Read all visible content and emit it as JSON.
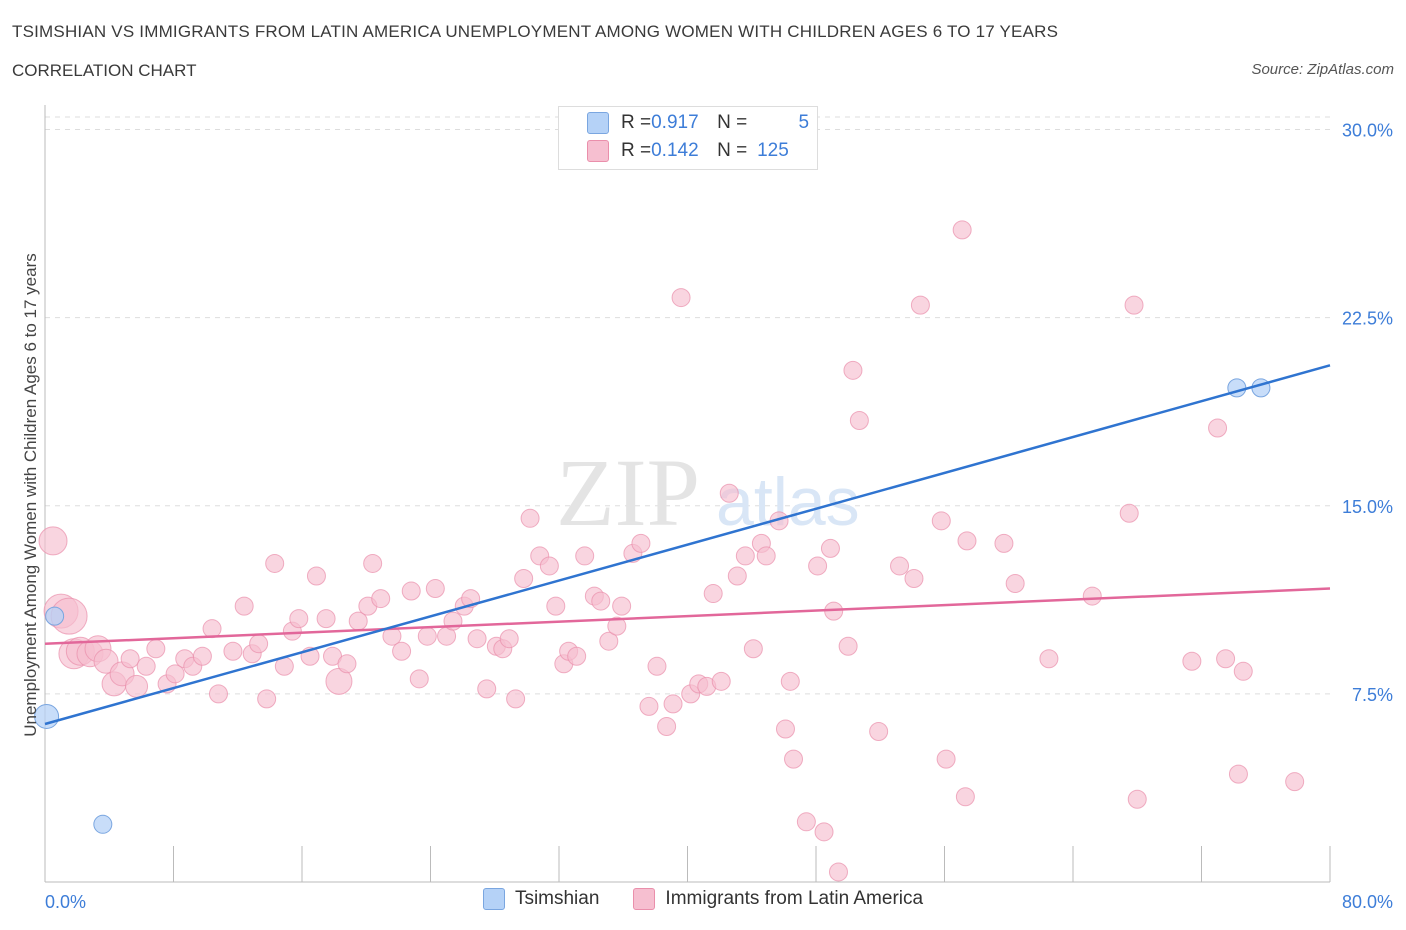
{
  "title": "TSIMSHIAN VS IMMIGRANTS FROM LATIN AMERICA UNEMPLOYMENT AMONG WOMEN WITH CHILDREN AGES 6 TO 17 YEARS",
  "subtitle": "CORRELATION CHART",
  "source": "Source: ZipAtlas.com",
  "watermark": {
    "zip": "ZIP",
    "atlas": "atlas"
  },
  "colors": {
    "tsimshian_fill": "#b5d2f7",
    "tsimshian_stroke": "#7aa6e0",
    "tsimshian_line": "#2f74d0",
    "latin_fill": "#f6bfd0",
    "latin_stroke": "#ea8fab",
    "latin_line": "#e2679a",
    "axis_label_blue": "#3d7dd8",
    "grid": "#dddddd"
  },
  "stats_legend": [
    {
      "r_label": "R = ",
      "r": "0.917",
      "n_label": "N = ",
      "n": "5"
    },
    {
      "r_label": "R = ",
      "r": "0.142",
      "n_label": "N = ",
      "n": "125"
    }
  ],
  "legend": [
    "Tsimshian",
    "Immigrants from Latin America"
  ],
  "chart_data": {
    "type": "scatter",
    "title": "TSIMSHIAN VS IMMIGRANTS FROM LATIN AMERICA UNEMPLOYMENT AMONG WOMEN WITH CHILDREN AGES 6 TO 17 YEARS",
    "ylabel": "Unemployment Among Women with Children Ages 6 to 17 years",
    "xlabel": "",
    "xlim": [
      0,
      80
    ],
    "ylim": [
      0,
      30.5
    ],
    "x_tick_labels": [
      "0.0%",
      "80.0%"
    ],
    "y_tick_labels": [
      "7.5%",
      "15.0%",
      "22.5%",
      "30.0%"
    ],
    "y_ticks": [
      7.5,
      15.0,
      22.5,
      30.0
    ],
    "x_ticks": [
      0,
      8,
      16,
      24,
      32,
      40,
      48,
      56,
      64,
      72,
      80
    ],
    "grid": true,
    "legend_position": "bottom",
    "series": [
      {
        "name": "Tsimshian",
        "r": 0.917,
        "n": 5,
        "points": [
          [
            0.1,
            6.6
          ],
          [
            0.6,
            10.6
          ],
          [
            3.6,
            2.3
          ],
          [
            74.2,
            19.7
          ],
          [
            75.7,
            19.7
          ]
        ],
        "trend": [
          [
            0,
            6.3
          ],
          [
            80,
            20.6
          ]
        ]
      },
      {
        "name": "Immigrants from Latin America",
        "r": 0.142,
        "n": 125,
        "points": [
          [
            0.5,
            13.6
          ],
          [
            1.0,
            10.8
          ],
          [
            1.5,
            10.6
          ],
          [
            1.8,
            9.1
          ],
          [
            2.2,
            9.2
          ],
          [
            2.8,
            9.1
          ],
          [
            3.3,
            9.3
          ],
          [
            3.8,
            8.8
          ],
          [
            4.3,
            7.9
          ],
          [
            4.8,
            8.3
          ],
          [
            5.3,
            8.9
          ],
          [
            5.7,
            7.8
          ],
          [
            6.3,
            8.6
          ],
          [
            6.9,
            9.3
          ],
          [
            7.6,
            7.9
          ],
          [
            8.1,
            8.3
          ],
          [
            8.7,
            8.9
          ],
          [
            9.2,
            8.6
          ],
          [
            9.8,
            9.0
          ],
          [
            10.4,
            10.1
          ],
          [
            10.8,
            7.5
          ],
          [
            11.7,
            9.2
          ],
          [
            12.4,
            11.0
          ],
          [
            12.9,
            9.1
          ],
          [
            13.3,
            9.5
          ],
          [
            13.8,
            7.3
          ],
          [
            14.3,
            12.7
          ],
          [
            14.9,
            8.6
          ],
          [
            15.4,
            10.0
          ],
          [
            15.8,
            10.5
          ],
          [
            16.5,
            9.0
          ],
          [
            16.9,
            12.2
          ],
          [
            17.5,
            10.5
          ],
          [
            17.9,
            9.0
          ],
          [
            18.3,
            8.0
          ],
          [
            18.8,
            8.7
          ],
          [
            19.5,
            10.4
          ],
          [
            20.1,
            11.0
          ],
          [
            20.4,
            12.7
          ],
          [
            20.9,
            11.3
          ],
          [
            21.6,
            9.8
          ],
          [
            22.2,
            9.2
          ],
          [
            22.8,
            11.6
          ],
          [
            23.3,
            8.1
          ],
          [
            23.8,
            9.8
          ],
          [
            24.3,
            11.7
          ],
          [
            25.0,
            9.8
          ],
          [
            25.4,
            10.4
          ],
          [
            26.1,
            11.0
          ],
          [
            26.5,
            11.3
          ],
          [
            26.9,
            9.7
          ],
          [
            27.5,
            7.7
          ],
          [
            28.1,
            9.4
          ],
          [
            28.5,
            9.3
          ],
          [
            28.9,
            9.7
          ],
          [
            29.3,
            7.3
          ],
          [
            29.8,
            12.1
          ],
          [
            30.2,
            14.5
          ],
          [
            30.8,
            13.0
          ],
          [
            31.4,
            12.6
          ],
          [
            31.8,
            11.0
          ],
          [
            32.3,
            8.7
          ],
          [
            32.6,
            9.2
          ],
          [
            33.1,
            9.0
          ],
          [
            33.6,
            13.0
          ],
          [
            34.2,
            11.4
          ],
          [
            34.6,
            11.2
          ],
          [
            35.1,
            9.6
          ],
          [
            35.6,
            10.2
          ],
          [
            35.9,
            11.0
          ],
          [
            36.6,
            13.1
          ],
          [
            37.1,
            13.5
          ],
          [
            37.6,
            7.0
          ],
          [
            38.1,
            8.6
          ],
          [
            38.7,
            6.2
          ],
          [
            39.1,
            7.1
          ],
          [
            39.6,
            23.3
          ],
          [
            40.2,
            7.5
          ],
          [
            40.7,
            7.9
          ],
          [
            41.2,
            7.8
          ],
          [
            41.6,
            11.5
          ],
          [
            42.1,
            8.0
          ],
          [
            42.6,
            15.5
          ],
          [
            43.1,
            12.2
          ],
          [
            43.6,
            13.0
          ],
          [
            44.1,
            9.3
          ],
          [
            44.6,
            13.5
          ],
          [
            44.9,
            13.0
          ],
          [
            45.7,
            14.4
          ],
          [
            46.1,
            6.1
          ],
          [
            46.4,
            8.0
          ],
          [
            46.6,
            4.9
          ],
          [
            47.4,
            2.4
          ],
          [
            48.1,
            12.6
          ],
          [
            48.5,
            2.0
          ],
          [
            48.9,
            13.3
          ],
          [
            49.1,
            10.8
          ],
          [
            49.4,
            0.4
          ],
          [
            50.0,
            9.4
          ],
          [
            50.3,
            20.4
          ],
          [
            50.7,
            18.4
          ],
          [
            51.9,
            6.0
          ],
          [
            53.2,
            12.6
          ],
          [
            54.1,
            12.1
          ],
          [
            54.5,
            23.0
          ],
          [
            55.8,
            14.4
          ],
          [
            56.1,
            4.9
          ],
          [
            57.1,
            26.0
          ],
          [
            57.3,
            3.4
          ],
          [
            57.4,
            13.6
          ],
          [
            59.7,
            13.5
          ],
          [
            60.4,
            11.9
          ],
          [
            62.5,
            8.9
          ],
          [
            65.2,
            11.4
          ],
          [
            67.5,
            14.7
          ],
          [
            68.0,
            3.3
          ],
          [
            67.8,
            23.0
          ],
          [
            71.4,
            8.8
          ],
          [
            73.0,
            18.1
          ],
          [
            73.5,
            8.9
          ],
          [
            74.3,
            4.3
          ],
          [
            74.6,
            8.4
          ],
          [
            77.8,
            4.0
          ]
        ],
        "trend": [
          [
            0,
            9.5
          ],
          [
            80,
            11.7
          ]
        ]
      }
    ]
  }
}
